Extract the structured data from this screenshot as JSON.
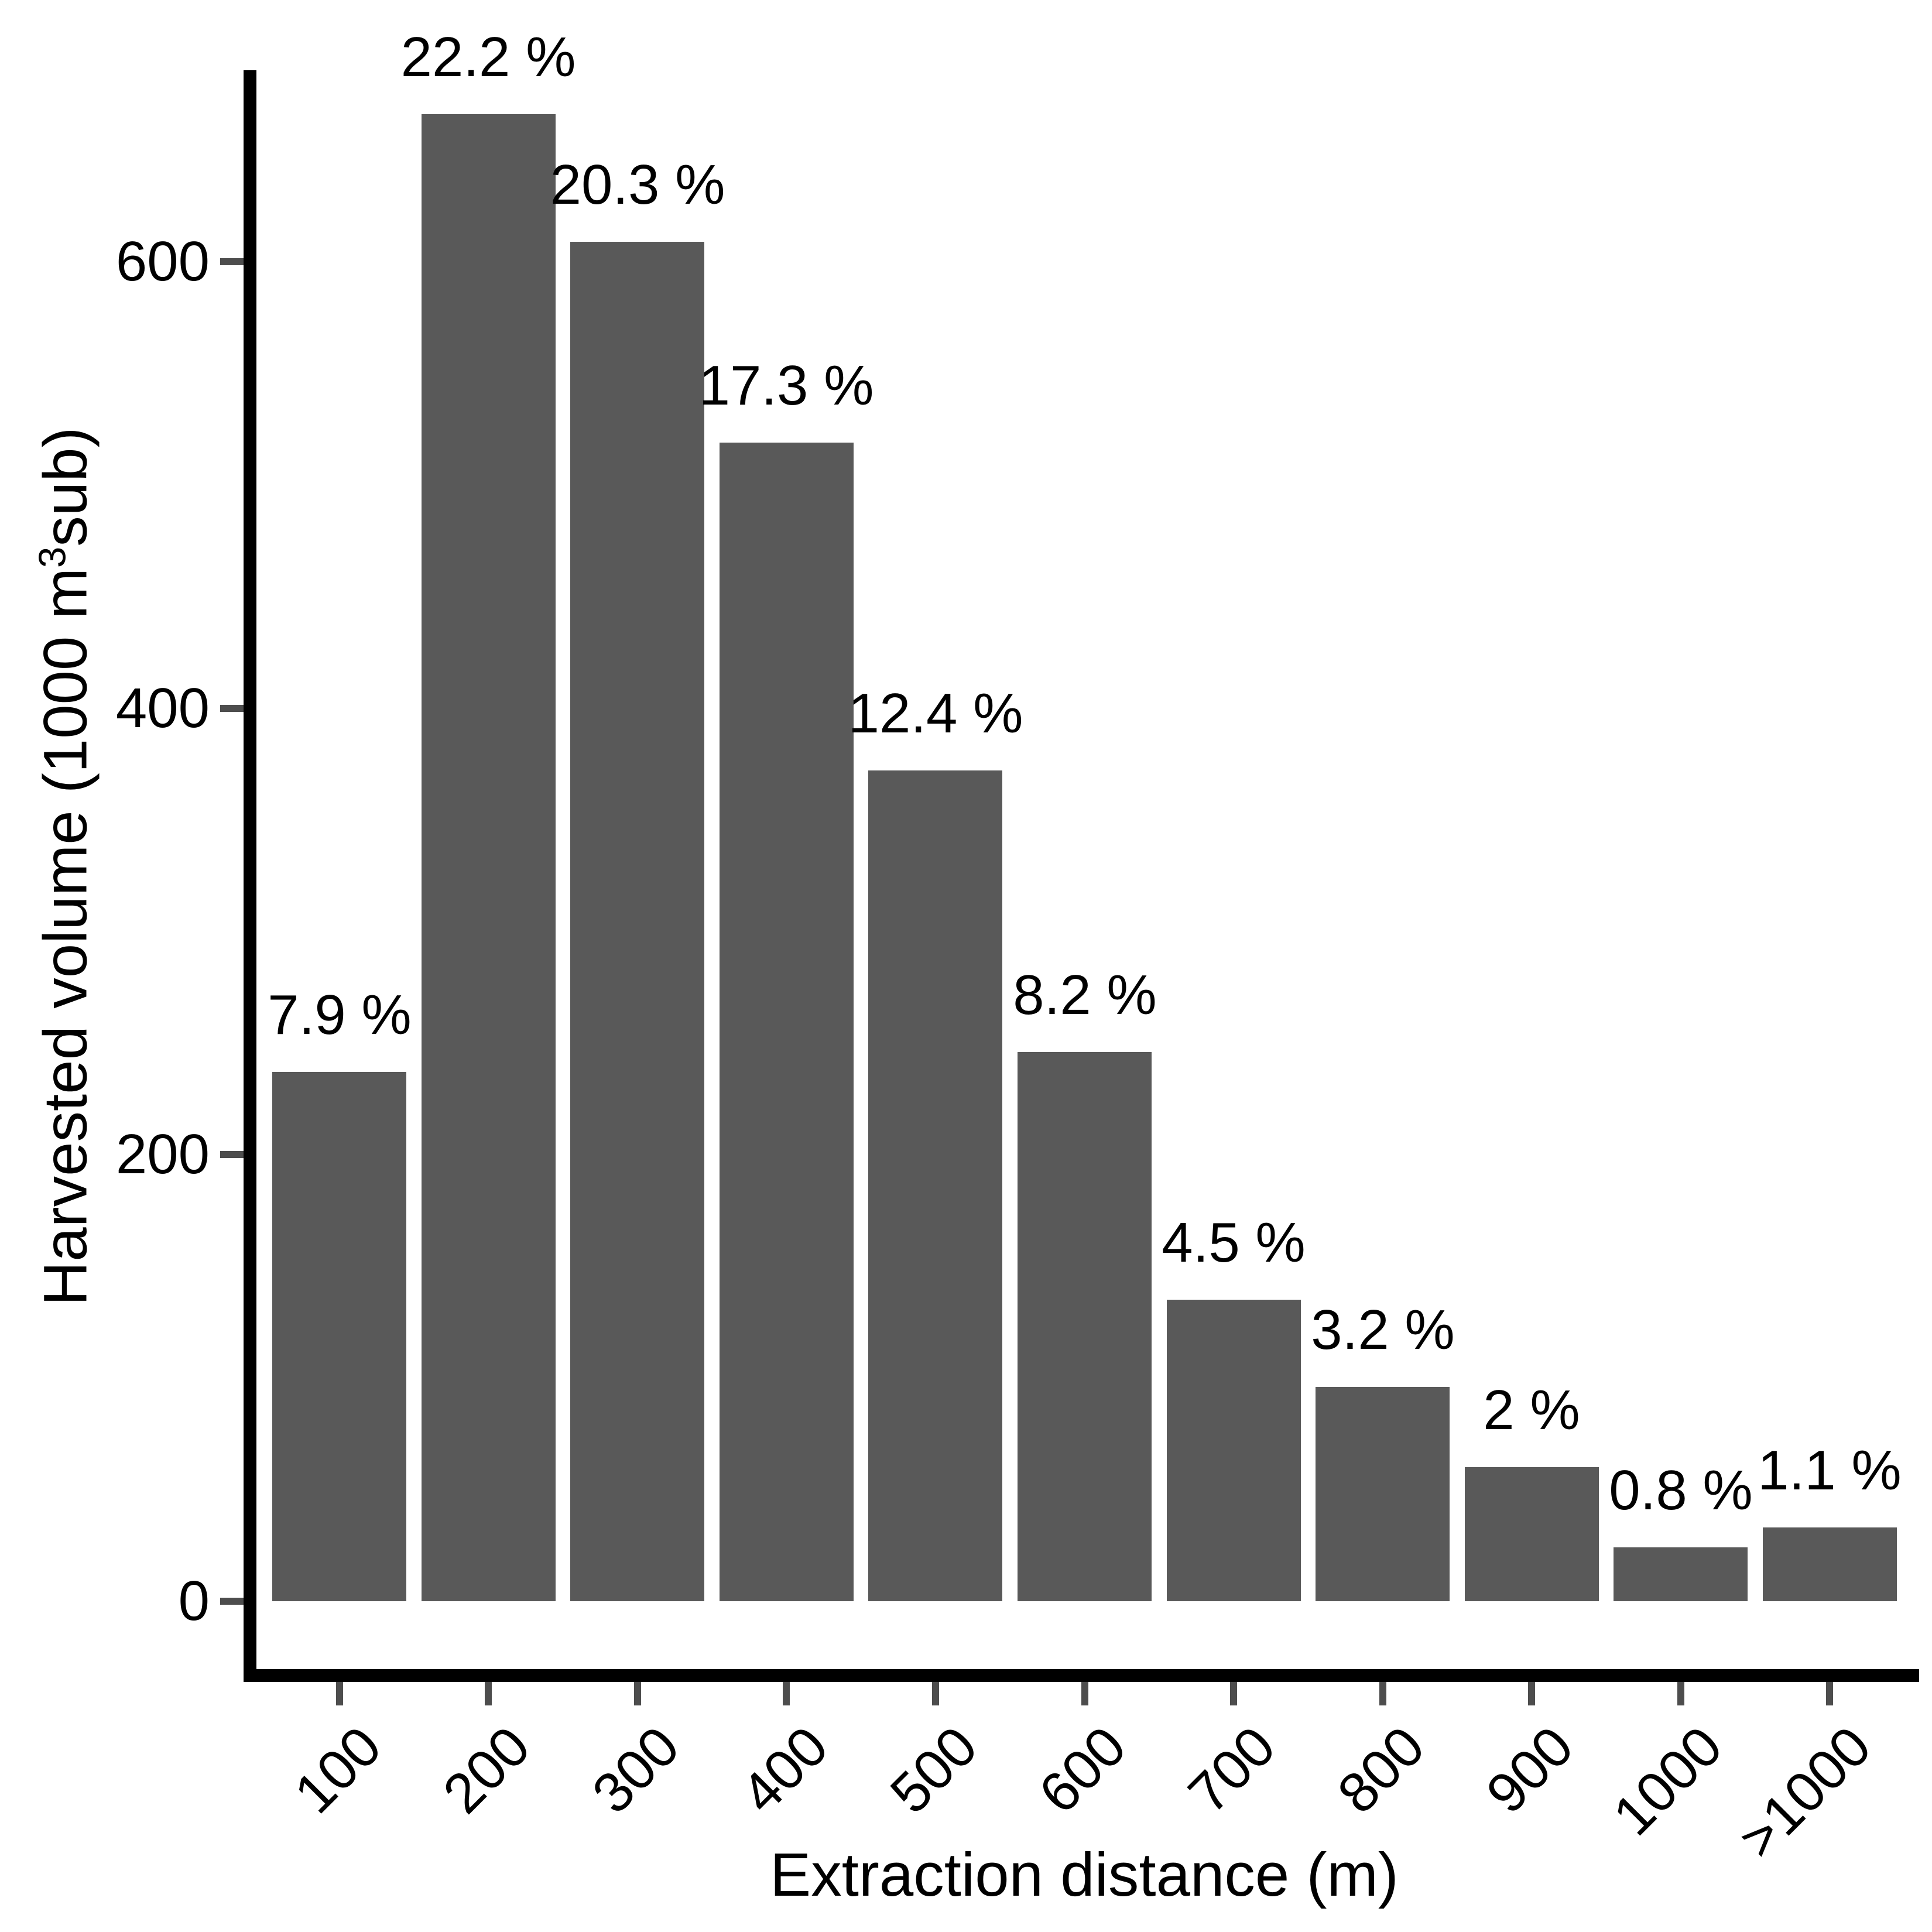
{
  "chart_data": {
    "type": "bar",
    "title": "",
    "categories": [
      "100",
      "200",
      "300",
      "400",
      "500",
      "600",
      "700",
      "800",
      "900",
      "1000",
      ">1000"
    ],
    "values": [
      237,
      666,
      609,
      519,
      372,
      246,
      135,
      96,
      60,
      24,
      33
    ],
    "bar_labels": [
      "7.9 %",
      "22.2 %",
      "20.3 %",
      "17.3 %",
      "12.4 %",
      "8.2 %",
      "4.5 %",
      "3.2 %",
      "2 %",
      "0.8 %",
      "1.1 %"
    ],
    "xlabel": "Extraction distance (m)",
    "ylabel": "Harvested volume (1000 m³sub)",
    "ylabel_parts": {
      "prefix": "Harvested volume (1000 m",
      "sup": "3",
      "suffix": "sub)"
    },
    "yticks": [
      "0",
      "200",
      "400",
      "600"
    ],
    "ylim": [
      0,
      700
    ],
    "grid": false,
    "legend_position": "none",
    "x_label_angle_deg": 45,
    "colors": {
      "bar": "#595959",
      "axis": "#000000",
      "tick": "#4d4d4d",
      "text": "#000000",
      "background": "#ffffff"
    }
  }
}
